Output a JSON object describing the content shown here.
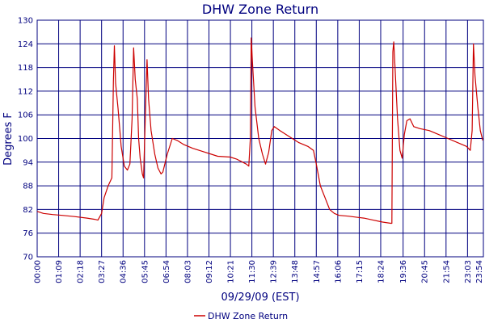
{
  "chart_data": {
    "type": "line",
    "title": "DHW Zone Return",
    "xlabel": "09/29/09 (EST)",
    "ylabel": "Degrees F",
    "ylim": [
      70,
      130
    ],
    "yticks": [
      70,
      76,
      82,
      88,
      94,
      100,
      106,
      112,
      118,
      124,
      130
    ],
    "xlim": [
      "00:00",
      "23:54"
    ],
    "xticks": [
      "00:00",
      "01:09",
      "02:18",
      "03:27",
      "04:36",
      "05:45",
      "06:54",
      "08:03",
      "09:12",
      "10:21",
      "11:30",
      "12:39",
      "13:48",
      "14:57",
      "16:06",
      "17:15",
      "18:24",
      "19:36",
      "20:45",
      "21:54",
      "23:03",
      "23:54"
    ],
    "grid": true,
    "legend": "bottom",
    "colors": {
      "series": "#cc0000",
      "axis": "#00007f",
      "grid": "#00007f",
      "text": "#00007f"
    },
    "series": [
      {
        "name": "DHW Zone Return",
        "points": [
          [
            "00:00",
            81.5
          ],
          [
            "00:20",
            81.0
          ],
          [
            "00:50",
            80.7
          ],
          [
            "01:20",
            80.5
          ],
          [
            "02:00",
            80.2
          ],
          [
            "02:40",
            79.8
          ],
          [
            "03:05",
            79.5
          ],
          [
            "03:15",
            79.3
          ],
          [
            "03:27",
            81.0
          ],
          [
            "03:35",
            85.0
          ],
          [
            "03:48",
            88.0
          ],
          [
            "04:00",
            90.0
          ],
          [
            "04:05",
            114.5
          ],
          [
            "04:08",
            123.5
          ],
          [
            "04:12",
            114.0
          ],
          [
            "04:20",
            107.5
          ],
          [
            "04:30",
            98.0
          ],
          [
            "04:40",
            93.0
          ],
          [
            "04:50",
            92.0
          ],
          [
            "04:58",
            93.5
          ],
          [
            "05:05",
            105.0
          ],
          [
            "05:10",
            123.0
          ],
          [
            "05:15",
            115.0
          ],
          [
            "05:22",
            110.0
          ],
          [
            "05:26",
            100.0
          ],
          [
            "05:31",
            95.0
          ],
          [
            "05:38",
            91.0
          ],
          [
            "05:42",
            90.0
          ],
          [
            "05:48",
            107.0
          ],
          [
            "05:53",
            120.0
          ],
          [
            "05:58",
            110.0
          ],
          [
            "06:06",
            102.0
          ],
          [
            "06:18",
            96.0
          ],
          [
            "06:28",
            92.5
          ],
          [
            "06:38",
            91.0
          ],
          [
            "06:44",
            91.5
          ],
          [
            "06:58",
            96.0
          ],
          [
            "07:14",
            100.0
          ],
          [
            "07:30",
            99.5
          ],
          [
            "07:50",
            98.5
          ],
          [
            "08:20",
            97.5
          ],
          [
            "09:00",
            96.5
          ],
          [
            "09:40",
            95.5
          ],
          [
            "10:20",
            95.3
          ],
          [
            "10:40",
            94.8
          ],
          [
            "11:00",
            94.0
          ],
          [
            "11:12",
            93.5
          ],
          [
            "11:20",
            93.0
          ],
          [
            "11:25",
            100.0
          ],
          [
            "11:28",
            125.5
          ],
          [
            "11:32",
            119.0
          ],
          [
            "11:40",
            108.0
          ],
          [
            "11:52",
            100.0
          ],
          [
            "12:04",
            96.0
          ],
          [
            "12:14",
            93.5
          ],
          [
            "12:24",
            96.5
          ],
          [
            "12:34",
            102.0
          ],
          [
            "12:42",
            103.0
          ],
          [
            "13:00",
            102.0
          ],
          [
            "13:30",
            100.5
          ],
          [
            "14:00",
            99.0
          ],
          [
            "14:30",
            98.0
          ],
          [
            "14:48",
            97.0
          ],
          [
            "14:57",
            93.5
          ],
          [
            "15:10",
            88.0
          ],
          [
            "15:25",
            85.0
          ],
          [
            "15:40",
            82.0
          ],
          [
            "15:55",
            81.0
          ],
          [
            "16:10",
            80.5
          ],
          [
            "16:40",
            80.3
          ],
          [
            "17:10",
            80.0
          ],
          [
            "17:30",
            79.8
          ],
          [
            "18:00",
            79.3
          ],
          [
            "18:30",
            78.8
          ],
          [
            "18:56",
            78.5
          ],
          [
            "19:00",
            78.5
          ],
          [
            "19:03",
            122.0
          ],
          [
            "19:06",
            124.5
          ],
          [
            "19:10",
            118.0
          ],
          [
            "19:18",
            105.0
          ],
          [
            "19:26",
            97.0
          ],
          [
            "19:33",
            95.0
          ],
          [
            "19:40",
            101.0
          ],
          [
            "19:48",
            104.5
          ],
          [
            "19:58",
            105.0
          ],
          [
            "20:10",
            103.0
          ],
          [
            "20:30",
            102.5
          ],
          [
            "21:00",
            102.0
          ],
          [
            "21:30",
            101.0
          ],
          [
            "22:00",
            100.0
          ],
          [
            "22:30",
            99.0
          ],
          [
            "23:00",
            98.0
          ],
          [
            "23:12",
            97.0
          ],
          [
            "23:18",
            102.0
          ],
          [
            "23:22",
            124.0
          ],
          [
            "23:27",
            116.0
          ],
          [
            "23:36",
            108.0
          ],
          [
            "23:44",
            102.0
          ],
          [
            "23:52",
            99.5
          ]
        ]
      }
    ]
  }
}
